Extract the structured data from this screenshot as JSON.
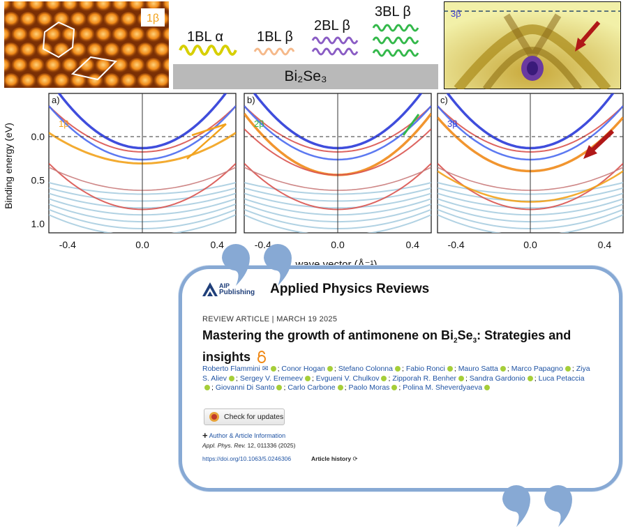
{
  "top": {
    "stm_label": "1β",
    "legend": [
      {
        "label": "1BL α",
        "color": "#d7cf00"
      },
      {
        "label": "1BL β",
        "color": "#f5b98a"
      },
      {
        "label": "2BL β",
        "color": "#8a5cc4"
      },
      {
        "label": "3BL β",
        "color": "#33b84a"
      }
    ],
    "substrate_label": "Bi₂Se₃",
    "arpes_label": "3β"
  },
  "plots": {
    "ylabel": "Binding energy (eV)",
    "xlabel": "wave vector (Å⁻¹)",
    "yticks": [
      "0.0",
      "0.5",
      "1.0"
    ],
    "xticks": [
      "-0.4",
      "0.0",
      "0.4"
    ],
    "panels": [
      {
        "letter": "a)",
        "tag": "1β",
        "tag_color": "#f2a21b"
      },
      {
        "letter": "b)",
        "tag": "2β",
        "tag_color": "#33b84a"
      },
      {
        "letter": "c)",
        "tag": "3β",
        "tag_color": "#3a3ad0"
      }
    ]
  },
  "card": {
    "publisher_line1": "AIP",
    "publisher_line2": "Publishing",
    "journal": "Applied Physics Reviews",
    "article_type": "REVIEW ARTICLE",
    "date": "MARCH 19 2025",
    "title_part1": "Mastering the growth of antimonene on Bi",
    "title_sub1": "2",
    "title_part2": "Se",
    "title_sub2": "3",
    "title_part3": ": Strategies and insights",
    "authors": [
      "Roberto Flammini",
      "Conor Hogan",
      "Stefano Colonna",
      "Fabio Ronci",
      "Mauro Satta",
      "Marco Papagno",
      "Ziya S. Aliev",
      "Sergey V. Eremeev",
      "Evgueni V. Chulkov",
      "Zipporah R. Benher",
      "Sandra Gardonio",
      "Luca Petaccia",
      "Giovanni Di Santo",
      "Carlo Carbone",
      "Paolo Moras",
      "Polina M. Sheverdyaeva"
    ],
    "check_updates": "Check for updates",
    "author_info": "Author & Article Information",
    "citation_journal": "Appl. Phys. Rev.",
    "citation_rest": "12, 011336 (2025)",
    "doi": "https://doi.org/10.1063/5.0246306",
    "history": "Article history"
  }
}
